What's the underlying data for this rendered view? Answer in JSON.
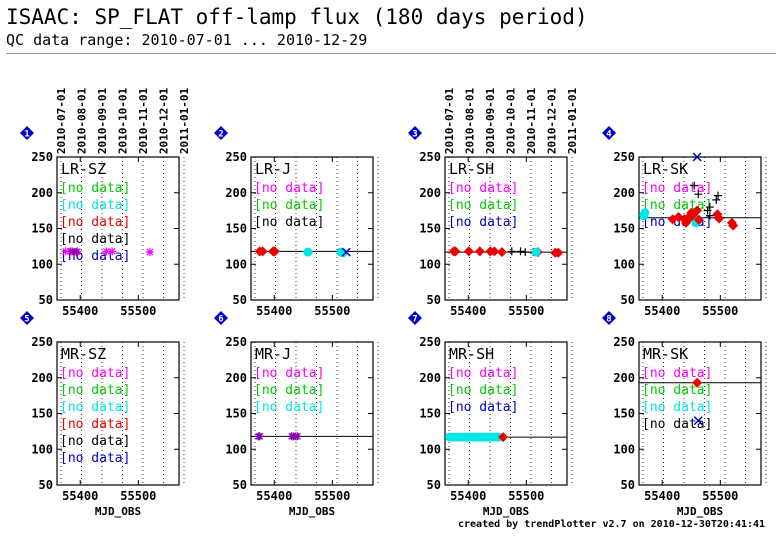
{
  "header": {
    "title": "ISAAC: SP_FLAT off-lamp flux (180 days period)",
    "subtitle": "QC data range: 2010-07-01 ... 2010-12-29"
  },
  "footer": "created by trendPlotter v2.7 on 2010-12-30T20:41:41",
  "colors": {
    "magenta": "#ff00ff",
    "green": "#00cc00",
    "cyan": "#00e5e5",
    "red": "#ee0000",
    "black": "#000000",
    "blue": "#0000cc",
    "purple": "#8800aa",
    "badge": "#0000cc"
  },
  "chart_data": [
    {
      "type": "scatter",
      "id": "1",
      "label": "LR-SZ",
      "xlim": [
        55360,
        55570
      ],
      "ylim": [
        50,
        250
      ],
      "xticks": [
        55400,
        55500
      ],
      "yticks": [
        50,
        100,
        150,
        200,
        250
      ],
      "top_dates": [
        "2010-07-01",
        "2010-08-01",
        "2010-09-01",
        "2010-10-01",
        "2010-11-01",
        "2010-12-01",
        "2011-01-01"
      ],
      "xlabel": "",
      "reference_line": null,
      "legend": [
        {
          "text": "[no data]",
          "color": "green"
        },
        {
          "text": "[no data]",
          "color": "cyan"
        },
        {
          "text": "[no data]",
          "color": "red"
        },
        {
          "text": "[no data]",
          "color": "black"
        },
        {
          "text": "[no data]",
          "color": "blue"
        }
      ],
      "series": [
        {
          "color": "magenta",
          "marker": "asterisk",
          "points": [
            [
              55375,
              118
            ],
            [
              55383,
              118
            ],
            [
              55390,
              117
            ],
            [
              55395,
              118
            ],
            [
              55445,
              118
            ],
            [
              55455,
              118
            ],
            [
              55520,
              117
            ]
          ]
        },
        {
          "color": "purple",
          "marker": "asterisk",
          "points": [
            [
              55386,
              118
            ],
            [
              55393,
              117
            ]
          ]
        }
      ]
    },
    {
      "type": "scatter",
      "id": "2",
      "label": "LR-J",
      "xlim": [
        55360,
        55570
      ],
      "ylim": [
        50,
        250
      ],
      "xticks": [
        55400,
        55500
      ],
      "yticks": [
        50,
        100,
        150,
        200,
        250
      ],
      "top_dates": [],
      "xlabel": "",
      "reference_line": 118,
      "legend": [
        {
          "text": "[no data]",
          "color": "magenta"
        },
        {
          "text": "[no data]",
          "color": "green"
        },
        {
          "text": "[no data]",
          "color": "black"
        }
      ],
      "series": [
        {
          "color": "red",
          "marker": "diamond",
          "points": [
            [
              55375,
              118
            ],
            [
              55380,
              118
            ],
            [
              55398,
              118
            ],
            [
              55401,
              118
            ]
          ]
        },
        {
          "color": "cyan",
          "marker": "circle",
          "points": [
            [
              55458,
              117
            ],
            [
              55515,
              117
            ],
            [
              55518,
              116
            ]
          ]
        },
        {
          "color": "blue",
          "marker": "cross",
          "points": [
            [
              55524,
              117
            ]
          ]
        }
      ]
    },
    {
      "type": "scatter",
      "id": "3",
      "label": "LR-SH",
      "xlim": [
        55360,
        55570
      ],
      "ylim": [
        50,
        250
      ],
      "xticks": [
        55400,
        55500
      ],
      "yticks": [
        50,
        100,
        150,
        200,
        250
      ],
      "top_dates": [
        "2010-07-01",
        "2010-08-01",
        "2010-09-01",
        "2010-10-01",
        "2010-11-01",
        "2010-12-01",
        "2011-01-01"
      ],
      "xlabel": "",
      "reference_line": 117,
      "legend": [
        {
          "text": "[no data]",
          "color": "magenta"
        },
        {
          "text": "[no data]",
          "color": "green"
        },
        {
          "text": "[no data]",
          "color": "blue"
        }
      ],
      "series": [
        {
          "color": "red",
          "marker": "diamond",
          "points": [
            [
              55375,
              118
            ],
            [
              55378,
              118
            ],
            [
              55401,
              118
            ],
            [
              55420,
              118
            ],
            [
              55438,
              118
            ],
            [
              55445,
              118
            ],
            [
              55458,
              117
            ],
            [
              55520,
              117
            ],
            [
              55550,
              116
            ],
            [
              55555,
              116
            ]
          ]
        },
        {
          "color": "black",
          "marker": "plus",
          "points": [
            [
              55475,
              118
            ],
            [
              55490,
              118
            ],
            [
              55498,
              117
            ],
            [
              55512,
              117
            ]
          ]
        },
        {
          "color": "cyan",
          "marker": "circle",
          "points": [
            [
              55517,
              117
            ]
          ]
        }
      ]
    },
    {
      "type": "scatter",
      "id": "4",
      "label": "LR-SK",
      "xlim": [
        55360,
        55570
      ],
      "ylim": [
        50,
        250
      ],
      "xticks": [
        55400,
        55500
      ],
      "yticks": [
        50,
        100,
        150,
        200,
        250
      ],
      "top_dates": [],
      "xlabel": "",
      "reference_line": 165,
      "legend": [
        {
          "text": "[no data]",
          "color": "magenta"
        },
        {
          "text": "[no data]",
          "color": "green"
        },
        {
          "text": "[no data]",
          "color": "blue"
        }
      ],
      "series": [
        {
          "color": "cyan",
          "marker": "circle",
          "points": [
            [
              55368,
              168
            ],
            [
              55370,
              172
            ],
            [
              55458,
              158
            ],
            [
              55462,
              162
            ]
          ]
        },
        {
          "color": "red",
          "marker": "diamond",
          "points": [
            [
              55418,
              163
            ],
            [
              55428,
              166
            ],
            [
              55438,
              163
            ],
            [
              55441,
              158
            ],
            [
              55444,
              162
            ],
            [
              55448,
              168
            ],
            [
              55450,
              172
            ],
            [
              55454,
              170
            ],
            [
              55460,
              175
            ],
            [
              55463,
              162
            ],
            [
              55495,
              170
            ],
            [
              55498,
              164
            ],
            [
              55520,
              158
            ],
            [
              55522,
              154
            ]
          ]
        },
        {
          "color": "black",
          "marker": "plus",
          "points": [
            [
              55455,
              210
            ],
            [
              55462,
              198
            ],
            [
              55478,
              175
            ],
            [
              55482,
              180
            ],
            [
              55493,
              190
            ],
            [
              55496,
              196
            ],
            [
              55482,
              168
            ]
          ]
        },
        {
          "color": "blue",
          "marker": "cross",
          "points": [
            [
              55460,
              250
            ]
          ]
        }
      ]
    },
    {
      "type": "scatter",
      "id": "5",
      "label": "MR-SZ",
      "xlim": [
        55360,
        55570
      ],
      "ylim": [
        50,
        250
      ],
      "xticks": [
        55400,
        55500
      ],
      "yticks": [
        50,
        100,
        150,
        200,
        250
      ],
      "top_dates": [],
      "xlabel": "MJD_OBS",
      "reference_line": null,
      "legend": [
        {
          "text": "[no data]",
          "color": "magenta"
        },
        {
          "text": "[no data]",
          "color": "green"
        },
        {
          "text": "[no data]",
          "color": "cyan"
        },
        {
          "text": "[no data]",
          "color": "red"
        },
        {
          "text": "[no data]",
          "color": "black"
        },
        {
          "text": "[no data]",
          "color": "blue"
        }
      ],
      "series": []
    },
    {
      "type": "scatter",
      "id": "6",
      "label": "MR-J",
      "xlim": [
        55360,
        55570
      ],
      "ylim": [
        50,
        250
      ],
      "xticks": [
        55400,
        55500
      ],
      "yticks": [
        50,
        100,
        150,
        200,
        250
      ],
      "top_dates": [],
      "xlabel": "MJD_OBS",
      "reference_line": 118,
      "legend": [
        {
          "text": "[no data]",
          "color": "magenta"
        },
        {
          "text": "[no data]",
          "color": "green"
        },
        {
          "text": "[no data]",
          "color": "cyan"
        }
      ],
      "series": [
        {
          "color": "purple",
          "marker": "asterisk",
          "points": [
            [
              55373,
              118
            ],
            [
              55375,
              118
            ],
            [
              55430,
              118
            ],
            [
              55433,
              118
            ],
            [
              55437,
              118
            ],
            [
              55440,
              118
            ]
          ]
        }
      ]
    },
    {
      "type": "scatter",
      "id": "7",
      "label": "MR-SH",
      "xlim": [
        55360,
        55570
      ],
      "ylim": [
        50,
        250
      ],
      "xticks": [
        55400,
        55500
      ],
      "yticks": [
        50,
        100,
        150,
        200,
        250
      ],
      "top_dates": [],
      "xlabel": "MJD_OBS",
      "reference_line": 117,
      "legend": [
        {
          "text": "[no data]",
          "color": "magenta"
        },
        {
          "text": "[no data]",
          "color": "green"
        },
        {
          "text": "[no data]",
          "color": "blue"
        }
      ],
      "series": [
        {
          "color": "cyan",
          "marker": "circle",
          "points": [
            [
              55368,
              117
            ],
            [
              55373,
              117
            ],
            [
              55378,
              117
            ],
            [
              55383,
              117
            ],
            [
              55388,
              117
            ],
            [
              55393,
              117
            ],
            [
              55398,
              117
            ],
            [
              55403,
              117
            ],
            [
              55408,
              117
            ],
            [
              55413,
              117
            ],
            [
              55418,
              117
            ],
            [
              55423,
              117
            ],
            [
              55428,
              117
            ],
            [
              55433,
              117
            ],
            [
              55438,
              117
            ],
            [
              55443,
              117
            ],
            [
              55448,
              117
            ],
            [
              55452,
              117
            ]
          ]
        },
        {
          "color": "red",
          "marker": "diamond",
          "points": [
            [
              55460,
              117
            ]
          ]
        }
      ]
    },
    {
      "type": "scatter",
      "id": "8",
      "label": "MR-SK",
      "xlim": [
        55360,
        55570
      ],
      "ylim": [
        50,
        250
      ],
      "xticks": [
        55400,
        55500
      ],
      "yticks": [
        50,
        100,
        150,
        200,
        250
      ],
      "top_dates": [],
      "xlabel": "MJD_OBS",
      "reference_line": 193,
      "legend": [
        {
          "text": "[no data]",
          "color": "magenta"
        },
        {
          "text": "[no data]",
          "color": "green"
        },
        {
          "text": "[no data]",
          "color": "cyan"
        },
        {
          "text": "[no data]",
          "color": "black"
        }
      ],
      "series": [
        {
          "color": "red",
          "marker": "diamond",
          "points": [
            [
              55460,
              193
            ]
          ]
        },
        {
          "color": "blue",
          "marker": "cross",
          "points": [
            [
              55462,
              140
            ]
          ]
        }
      ]
    }
  ]
}
